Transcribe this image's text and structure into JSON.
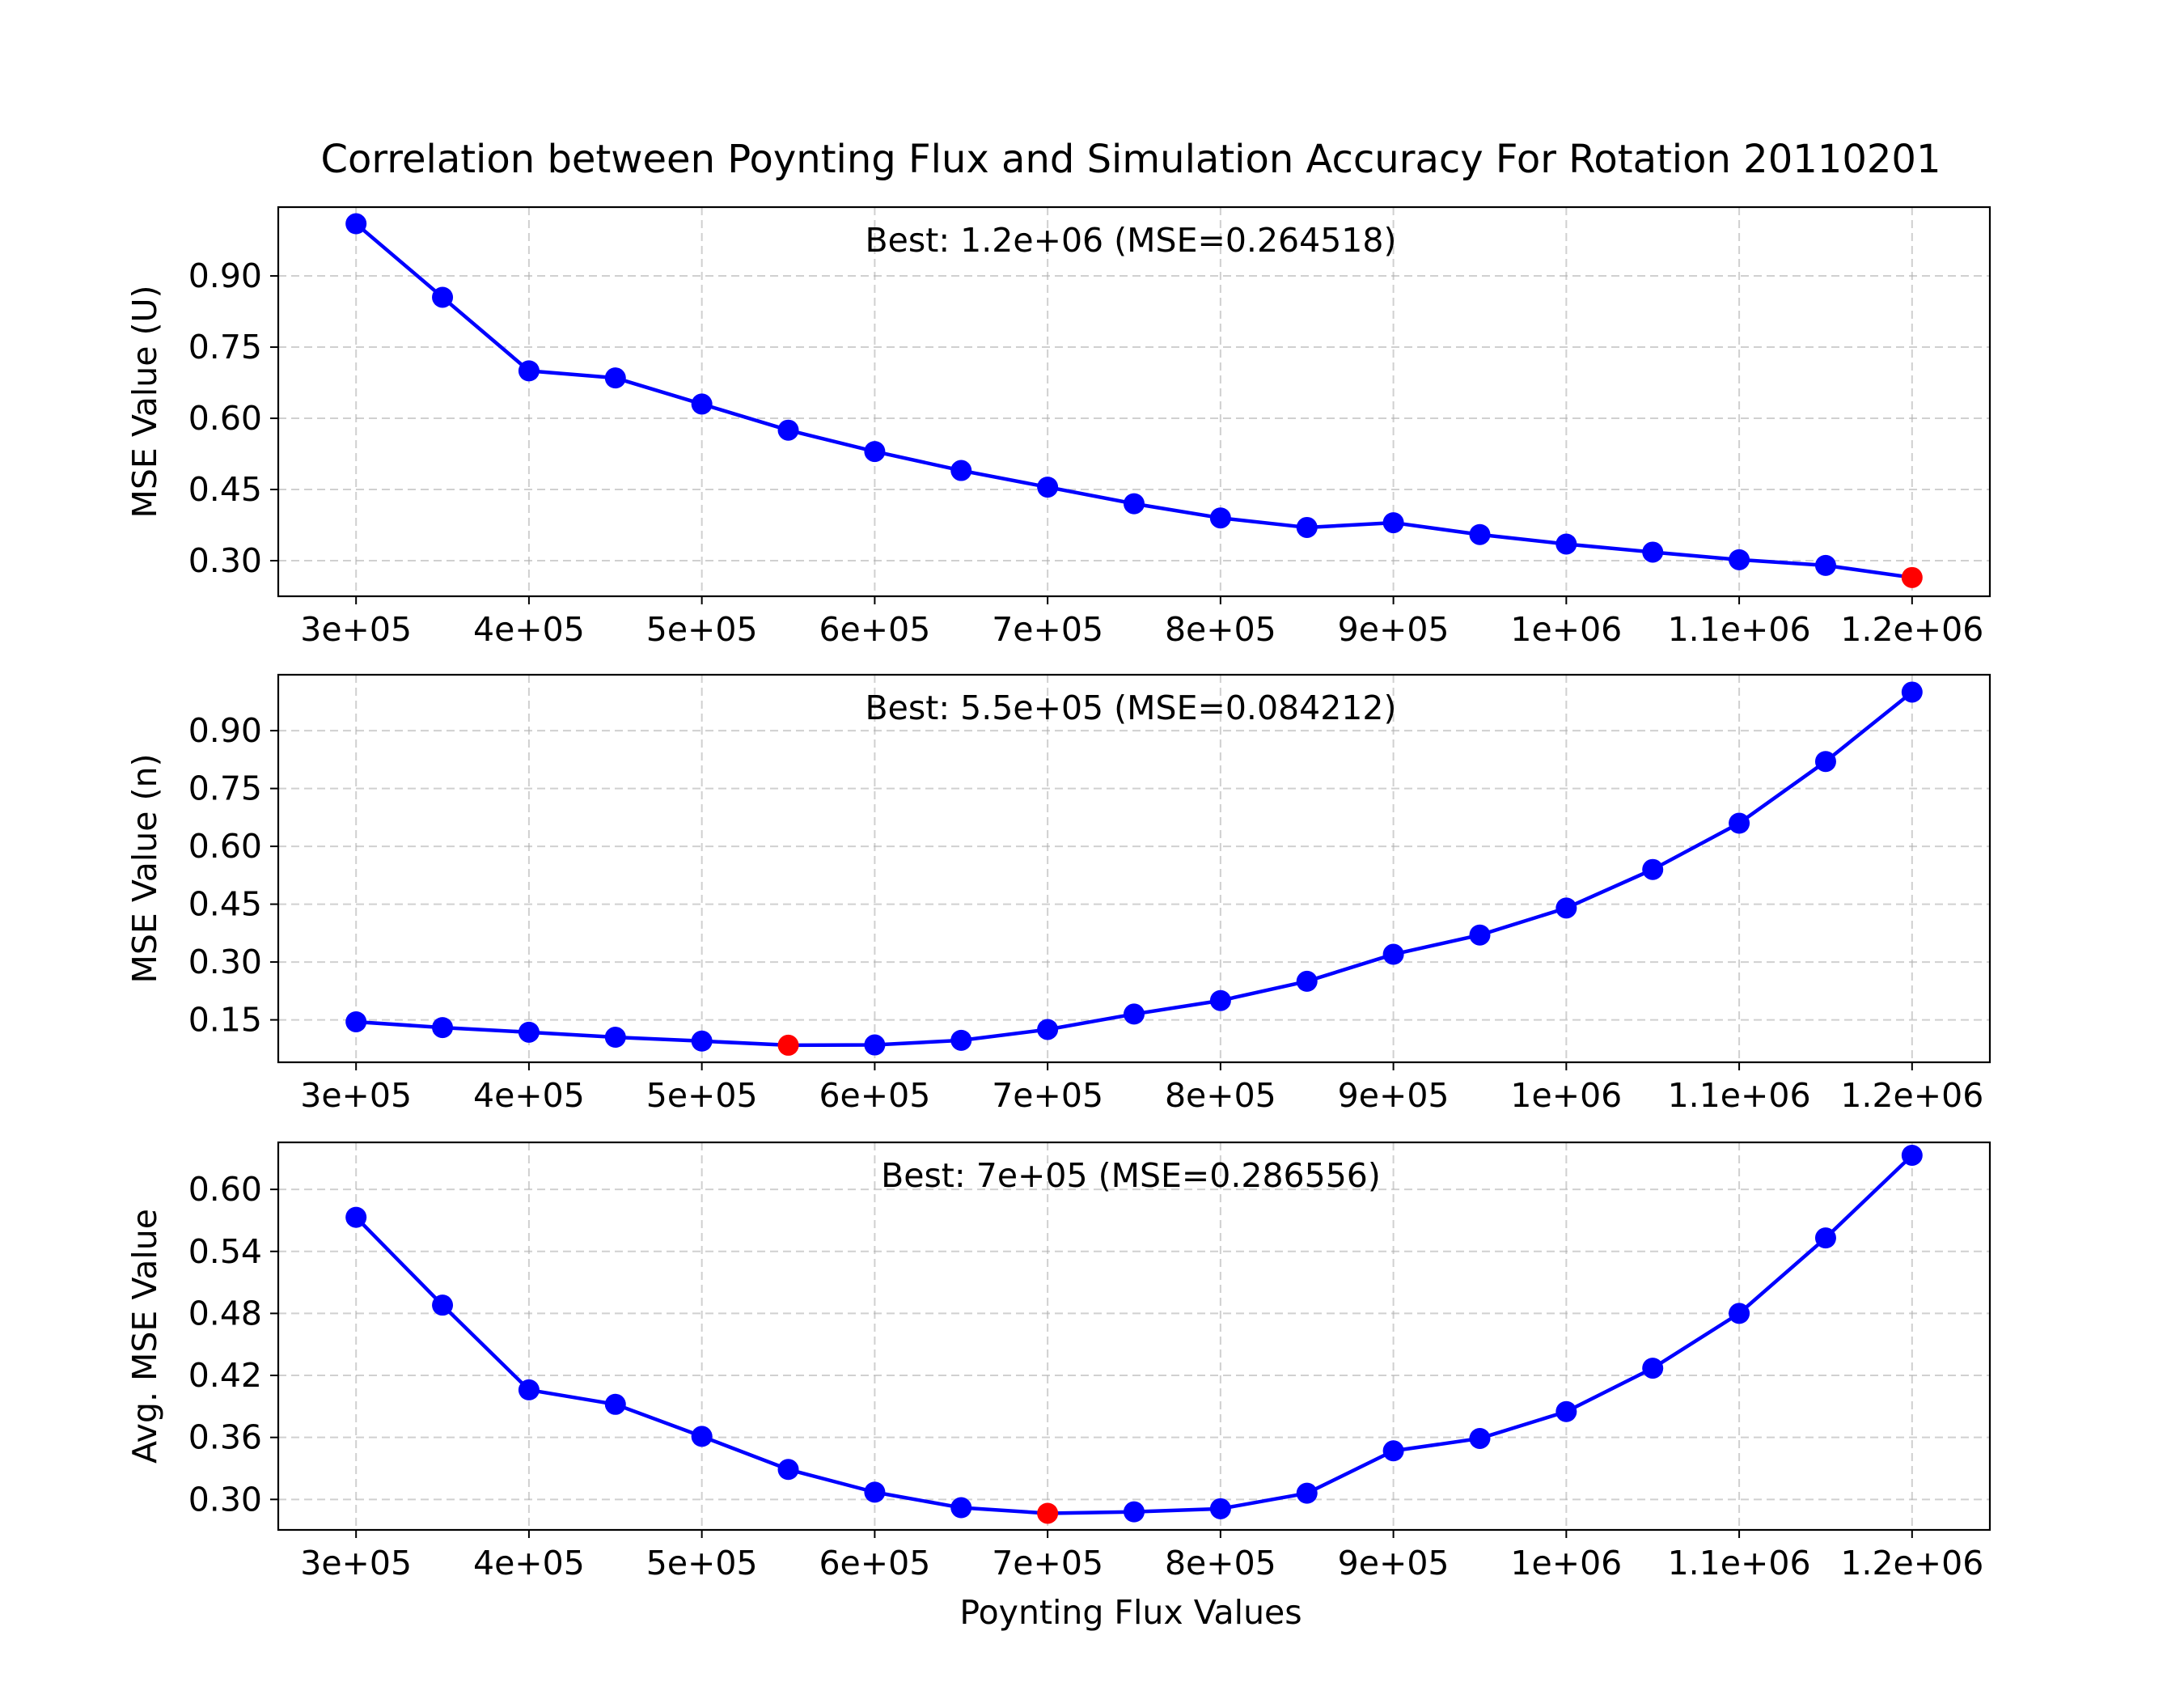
{
  "figure": {
    "title": "Correlation between Poynting Flux and Simulation Accuracy For Rotation 20110201",
    "xlabel": "Poynting Flux Values"
  },
  "colors": {
    "line": "#0000ff",
    "best_marker": "#ff0000",
    "grid": "#b0b0b0"
  },
  "chart_data": [
    {
      "type": "line",
      "ylabel": "MSE Value (U)",
      "annotation": "Best: 1.2e+06 (MSE=0.264518)",
      "best_index": 18,
      "x": [
        300000,
        350000,
        400000,
        450000,
        500000,
        550000,
        600000,
        650000,
        700000,
        750000,
        800000,
        850000,
        900000,
        950000,
        1000000,
        1050000,
        1100000,
        1150000,
        1200000
      ],
      "x_ticks": [
        300000,
        400000,
        500000,
        600000,
        700000,
        800000,
        900000,
        1000000,
        1100000,
        1200000
      ],
      "x_tick_labels": [
        "3e+05",
        "4e+05",
        "5e+05",
        "6e+05",
        "7e+05",
        "8e+05",
        "9e+05",
        "1e+06",
        "1.1e+06",
        "1.2e+06"
      ],
      "xlim": [
        255000,
        1245000
      ],
      "values": [
        1.01,
        0.855,
        0.7,
        0.685,
        0.63,
        0.575,
        0.53,
        0.49,
        0.455,
        0.42,
        0.39,
        0.37,
        0.38,
        0.355,
        0.335,
        0.318,
        0.302,
        0.29,
        0.264518
      ],
      "ylim": [
        0.225,
        1.045
      ],
      "y_ticks": [
        0.3,
        0.45,
        0.6,
        0.75,
        0.9
      ],
      "y_tick_labels": [
        "0.30",
        "0.45",
        "0.60",
        "0.75",
        "0.90"
      ],
      "grid": true
    },
    {
      "type": "line",
      "ylabel": "MSE Value (n)",
      "annotation": "Best: 5.5e+05 (MSE=0.084212)",
      "best_index": 5,
      "x": [
        300000,
        350000,
        400000,
        450000,
        500000,
        550000,
        600000,
        650000,
        700000,
        750000,
        800000,
        850000,
        900000,
        950000,
        1000000,
        1050000,
        1100000,
        1150000,
        1200000
      ],
      "x_ticks": [
        300000,
        400000,
        500000,
        600000,
        700000,
        800000,
        900000,
        1000000,
        1100000,
        1200000
      ],
      "x_tick_labels": [
        "3e+05",
        "4e+05",
        "5e+05",
        "6e+05",
        "7e+05",
        "8e+05",
        "9e+05",
        "1e+06",
        "1.1e+06",
        "1.2e+06"
      ],
      "xlim": [
        255000,
        1245000
      ],
      "values": [
        0.145,
        0.13,
        0.118,
        0.105,
        0.095,
        0.084212,
        0.085,
        0.097,
        0.125,
        0.165,
        0.2,
        0.25,
        0.32,
        0.37,
        0.44,
        0.54,
        0.66,
        0.82,
        1.0
      ],
      "ylim": [
        0.04,
        1.045
      ],
      "y_ticks": [
        0.15,
        0.3,
        0.45,
        0.6,
        0.75,
        0.9
      ],
      "y_tick_labels": [
        "0.15",
        "0.30",
        "0.45",
        "0.60",
        "0.75",
        "0.90"
      ],
      "grid": true
    },
    {
      "type": "line",
      "ylabel": "Avg. MSE Value",
      "annotation": "Best: 7e+05 (MSE=0.286556)",
      "best_index": 8,
      "x": [
        300000,
        350000,
        400000,
        450000,
        500000,
        550000,
        600000,
        650000,
        700000,
        750000,
        800000,
        850000,
        900000,
        950000,
        1000000,
        1050000,
        1100000,
        1150000,
        1200000
      ],
      "x_ticks": [
        300000,
        400000,
        500000,
        600000,
        700000,
        800000,
        900000,
        1000000,
        1100000,
        1200000
      ],
      "x_tick_labels": [
        "3e+05",
        "4e+05",
        "5e+05",
        "6e+05",
        "7e+05",
        "8e+05",
        "9e+05",
        "1e+06",
        "1.1e+06",
        "1.2e+06"
      ],
      "xlim": [
        255000,
        1245000
      ],
      "values": [
        0.573,
        0.488,
        0.406,
        0.392,
        0.361,
        0.329,
        0.307,
        0.292,
        0.286556,
        0.288,
        0.291,
        0.306,
        0.347,
        0.359,
        0.385,
        0.427,
        0.48,
        0.553,
        0.633
      ],
      "ylim": [
        0.2705,
        0.6455
      ],
      "y_ticks": [
        0.3,
        0.36,
        0.42,
        0.48,
        0.54,
        0.6
      ],
      "y_tick_labels": [
        "0.30",
        "0.36",
        "0.42",
        "0.48",
        "0.54",
        "0.60"
      ],
      "grid": true
    }
  ]
}
